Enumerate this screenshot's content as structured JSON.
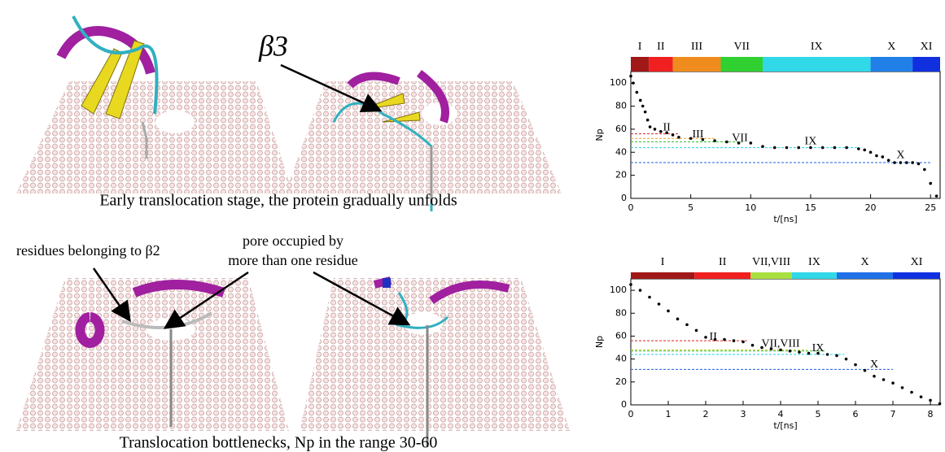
{
  "figure": {
    "beta3": "β3",
    "caption_top": "Early translocation stage, the protein gradually unfolds",
    "residues_label": "residues belonging to β2",
    "pore_label_1": "pore occupied by",
    "pore_label_2": "more than one residue",
    "caption_bottom": "Translocation bottlenecks, Np in the range 30-60"
  },
  "chart_data": [
    {
      "type": "scatter",
      "xlabel": "t/[ns]",
      "ylabel": "Np",
      "color": "#000000",
      "x": [
        0,
        0.2,
        0.5,
        0.8,
        1,
        1.2,
        1.4,
        1.6,
        2,
        2.5,
        3,
        3.5,
        4,
        5,
        6,
        7,
        8,
        9,
        10,
        11,
        12,
        13,
        14,
        15,
        16,
        17,
        18,
        19,
        19.5,
        20,
        20.5,
        21,
        21.5,
        22,
        22.5,
        23,
        23.5,
        24,
        24.5,
        25,
        25.5
      ],
      "values": [
        106,
        100,
        92,
        85,
        80,
        75,
        68,
        62,
        60,
        58,
        57,
        55,
        53,
        52,
        51,
        50,
        49,
        48,
        48,
        45,
        44,
        44,
        44,
        44,
        44,
        44,
        44,
        43,
        42,
        40,
        37,
        36,
        33,
        31,
        31,
        31,
        31,
        30,
        25,
        13,
        2
      ],
      "xlim": [
        0,
        25.8
      ],
      "xticks": [
        0,
        5,
        10,
        15,
        20,
        25
      ],
      "ylim": [
        0,
        110
      ],
      "yticks": [
        0,
        20,
        40,
        60,
        80,
        100
      ],
      "bands": [
        {
          "label": "I",
          "start": 0,
          "end": 1.5,
          "color": "#a01818"
        },
        {
          "label": "II",
          "start": 1.5,
          "end": 3.5,
          "color": "#f02020"
        },
        {
          "label": "III",
          "start": 3.5,
          "end": 7.5,
          "color": "#f08c1e"
        },
        {
          "label": "VII",
          "start": 7.5,
          "end": 11,
          "color": "#30d030"
        },
        {
          "label": "IX",
          "start": 11,
          "end": 20,
          "color": "#30d8e8"
        },
        {
          "label": "X",
          "start": 20,
          "end": 23.5,
          "color": "#2080e8"
        },
        {
          "label": "XI",
          "start": 23.5,
          "end": 25.8,
          "color": "#1030e0"
        }
      ],
      "hlines": [
        {
          "value": 56,
          "x_end": 4,
          "color": "#e02020"
        },
        {
          "value": 52,
          "x_end": 7,
          "color": "#f0a020"
        },
        {
          "value": 49,
          "x_end": 9.5,
          "color": "#30c030"
        },
        {
          "value": 44,
          "x_end": 19,
          "color": "#20d0e0"
        },
        {
          "value": 31,
          "x_end": 25,
          "color": "#2060e0"
        }
      ],
      "annotations": [
        {
          "text": "II",
          "x": 3,
          "y": 61
        },
        {
          "text": "III",
          "x": 5.6,
          "y": 55
        },
        {
          "text": "VII",
          "x": 9.1,
          "y": 52
        },
        {
          "text": "IX",
          "x": 15,
          "y": 49
        },
        {
          "text": "X",
          "x": 22.5,
          "y": 37
        }
      ]
    },
    {
      "type": "scatter",
      "xlabel": "t/[ns]",
      "ylabel": "Np",
      "color": "#000000",
      "x": [
        0,
        0.25,
        0.5,
        0.75,
        1,
        1.25,
        1.5,
        1.75,
        2,
        2.25,
        2.5,
        2.75,
        3,
        3.25,
        3.5,
        3.75,
        4,
        4.25,
        4.5,
        4.75,
        5,
        5.25,
        5.5,
        5.75,
        6,
        6.25,
        6.5,
        6.75,
        7,
        7.25,
        7.5,
        7.75,
        8,
        8.25
      ],
      "values": [
        105,
        100,
        94,
        88,
        82,
        75,
        70,
        65,
        59,
        57,
        57,
        56,
        55,
        52,
        50,
        49,
        48,
        47,
        46,
        45,
        45,
        44,
        43,
        40,
        35,
        30,
        25,
        22,
        19,
        15,
        11,
        7,
        4,
        1
      ],
      "xlim": [
        0,
        8.26
      ],
      "xticks": [
        0,
        1,
        2,
        3,
        4,
        5,
        6,
        7,
        8
      ],
      "ylim": [
        0,
        110
      ],
      "yticks": [
        0,
        20,
        40,
        60,
        80,
        100
      ],
      "bands": [
        {
          "label": "I",
          "start": 0,
          "end": 1.7,
          "color": "#a01818"
        },
        {
          "label": "II",
          "start": 1.7,
          "end": 3.2,
          "color": "#f02020"
        },
        {
          "label": "VII,VIII",
          "start": 3.2,
          "end": 4.3,
          "color": "#a8e040"
        },
        {
          "label": "IX",
          "start": 4.3,
          "end": 5.5,
          "color": "#30d8e8"
        },
        {
          "label": "X",
          "start": 5.5,
          "end": 7,
          "color": "#2070e8"
        },
        {
          "label": "XI",
          "start": 7,
          "end": 8.26,
          "color": "#1030e0"
        }
      ],
      "hlines": [
        {
          "value": 56,
          "x_end": 3.1,
          "color": "#e02020"
        },
        {
          "value": 48,
          "x_end": 4.7,
          "color": "#c8d020"
        },
        {
          "value": 47,
          "x_end": 5.2,
          "color": "#30c030"
        },
        {
          "value": 44,
          "x_end": 5.7,
          "color": "#20d0e0"
        },
        {
          "value": 31,
          "x_end": 7,
          "color": "#2060e0"
        }
      ],
      "annotations": [
        {
          "text": "II",
          "x": 2.2,
          "y": 59
        },
        {
          "text": "VII,VIII",
          "x": 4,
          "y": 53
        },
        {
          "text": "IX",
          "x": 5,
          "y": 49
        },
        {
          "text": "X",
          "x": 6.5,
          "y": 35
        }
      ]
    }
  ]
}
